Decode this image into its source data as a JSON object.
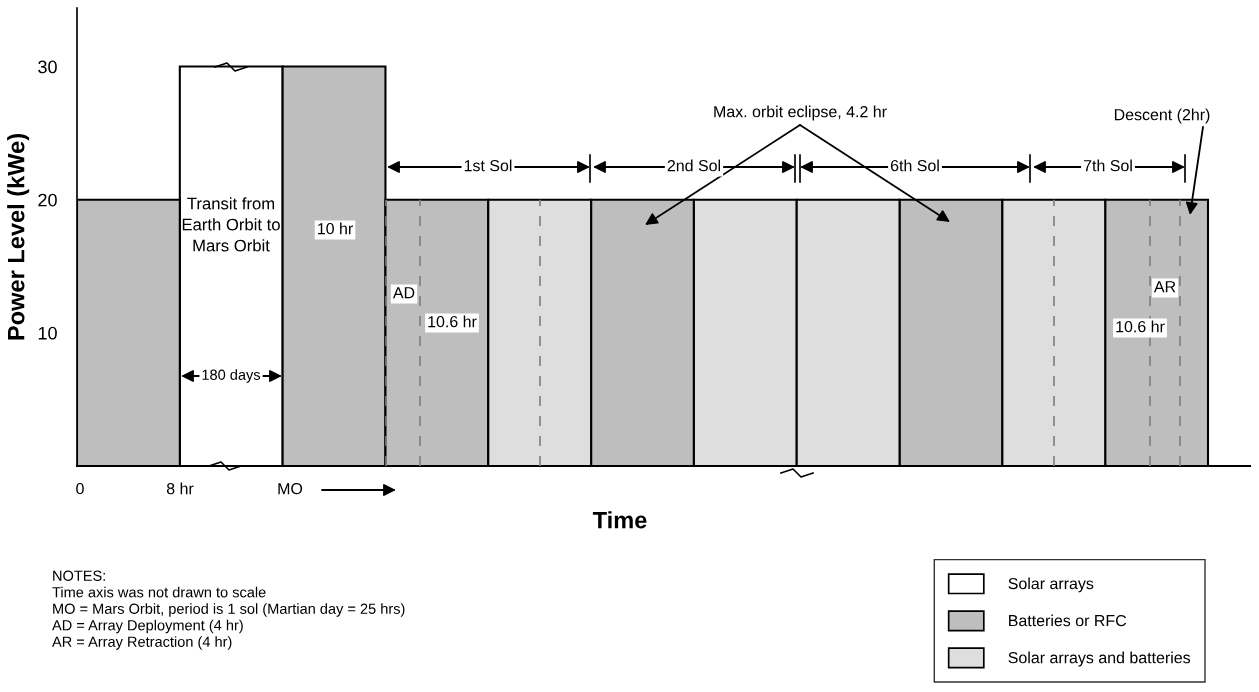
{
  "chart_data": {
    "type": "bar",
    "ylabel": "Power Level (kWe)",
    "xlabel": "Time",
    "categories": [
      null,
      null,
      null,
      null,
      null,
      null,
      null,
      null,
      null,
      null,
      null
    ],
    "series": [
      {
        "name": "Solar arrays",
        "color": "#ffffff",
        "values": [
          null,
          30,
          null,
          null,
          null,
          null,
          null,
          null,
          null,
          null,
          null
        ]
      },
      {
        "name": "Batteries or RFC",
        "color": "#bebebe",
        "values": [
          20,
          null,
          30,
          20,
          null,
          20,
          null,
          null,
          20,
          null,
          20
        ]
      },
      {
        "name": "Solar arrays and batteries",
        "color": "#dedede",
        "values": [
          null,
          null,
          null,
          null,
          20,
          null,
          20,
          20,
          null,
          20,
          null
        ]
      }
    ],
    "ylim": [
      0,
      34.4
    ],
    "yticks": [
      10,
      20,
      30
    ],
    "legend": "bottom right",
    "grid": false,
    "annotations": [
      "Transit from",
      "Earth Orbit to",
      "Mars Orbit",
      "180 days",
      "10 hr",
      "AD",
      "10.6 hr",
      "1st Sol",
      "2nd Sol",
      "6th Sol",
      "7th Sol",
      "Max. orbit eclipse, 4.2 hr",
      "Descent (2hr)",
      "AR",
      "10.6 hr",
      "0",
      "8 hr",
      "MO",
      "NOTES:",
      "Time axis was not drawn to scale",
      "MO = Mars Orbit, period is 1 sol (Martian day = 25 hrs)",
      "AD = Array Deployment (4 hr)",
      "AR = Array Retraction (4 hr)"
    ]
  }
}
